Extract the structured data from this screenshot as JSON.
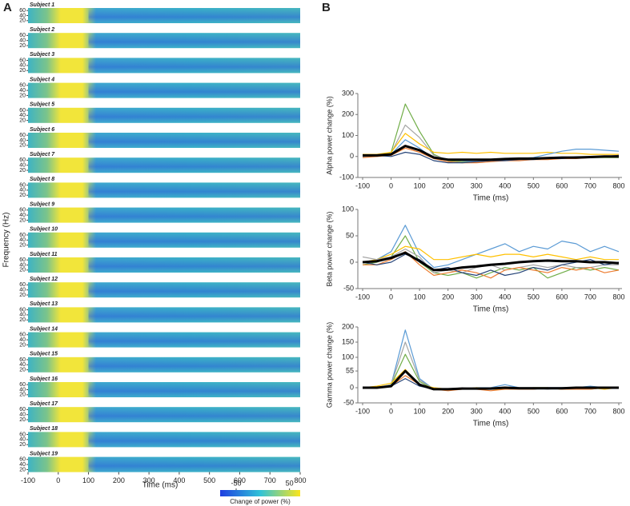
{
  "chart_data": [
    {
      "type": "heatmap",
      "panel_label": "A",
      "subjects": [
        "Subject 1",
        "Subject 2",
        "Subject 3",
        "Subject 4",
        "Subject 5",
        "Subject 6",
        "Subject 7",
        "Subject 8",
        "Subject 9",
        "Subject 10",
        "Subject 11",
        "Subject 12",
        "Subject 13",
        "Subject 14",
        "Subject 15",
        "Subject 16",
        "Subject 17",
        "Subject 18",
        "Subject 19"
      ],
      "xlabel": "Time (ms)",
      "ylabel": "Frequency (Hz)",
      "xlim": [
        -100,
        800
      ],
      "xticks": [
        -100,
        0,
        100,
        200,
        300,
        400,
        500,
        600,
        700,
        800
      ],
      "ylim": [
        10,
        70
      ],
      "yticks": [
        60,
        40,
        20
      ],
      "colorbar": {
        "label": "Change of power (%)",
        "lim": [
          -80,
          70
        ],
        "ticks": [
          -50,
          50
        ]
      }
    },
    {
      "type": "line",
      "panel_label": "B",
      "xlabel": "Time (ms)",
      "ylabel": "Alpha power change (%)",
      "x": [
        -100,
        -50,
        0,
        50,
        100,
        150,
        200,
        250,
        300,
        350,
        400,
        450,
        500,
        550,
        600,
        650,
        700,
        750,
        800
      ],
      "xlim": [
        -100,
        800
      ],
      "xticks": [
        -100,
        0,
        100,
        200,
        300,
        400,
        500,
        600,
        700,
        800
      ],
      "ylim": [
        -100,
        300
      ],
      "yticks": [
        300,
        200,
        100,
        0,
        -100
      ],
      "series": [
        {
          "color": "#70ad47",
          "values": [
            0,
            5,
            20,
            250,
            120,
            10,
            -20,
            -25,
            -20,
            -15,
            -15,
            -10,
            -10,
            -10,
            -5,
            -5,
            -5,
            -5,
            -5
          ]
        },
        {
          "color": "#a5a5a5",
          "values": [
            5,
            5,
            15,
            150,
            90,
            5,
            -15,
            -20,
            -20,
            -20,
            -15,
            -15,
            -10,
            -10,
            -5,
            0,
            0,
            0,
            0
          ]
        },
        {
          "color": "#ffc000",
          "values": [
            10,
            10,
            20,
            110,
            60,
            20,
            15,
            20,
            15,
            20,
            15,
            15,
            15,
            20,
            15,
            15,
            10,
            10,
            10
          ]
        },
        {
          "color": "#5b9bd5",
          "values": [
            0,
            0,
            10,
            80,
            40,
            -10,
            -15,
            -20,
            -25,
            -20,
            -15,
            -10,
            -5,
            10,
            25,
            35,
            35,
            30,
            25
          ]
        },
        {
          "color": "#ed7d31",
          "values": [
            -5,
            0,
            5,
            40,
            20,
            -10,
            -25,
            -30,
            -30,
            -25,
            -20,
            -20,
            -15,
            -15,
            -10,
            -10,
            -5,
            0,
            0
          ]
        },
        {
          "color": "#264478",
          "values": [
            5,
            5,
            0,
            20,
            10,
            -20,
            -30,
            -30,
            -25,
            -20,
            -20,
            -15,
            -15,
            -10,
            -10,
            -5,
            -5,
            0,
            5
          ]
        },
        {
          "color": "#000000",
          "values": [
            5,
            5,
            10,
            50,
            30,
            -5,
            -15,
            -15,
            -15,
            -15,
            -12,
            -10,
            -10,
            -8,
            -5,
            -5,
            -3,
            0,
            0
          ]
        }
      ]
    },
    {
      "type": "line",
      "xlabel": "Time (ms)",
      "ylabel": "Beta power change (%)",
      "x": [
        -100,
        -50,
        0,
        50,
        100,
        150,
        200,
        250,
        300,
        350,
        400,
        450,
        500,
        550,
        600,
        650,
        700,
        750,
        800
      ],
      "xlim": [
        -100,
        800
      ],
      "xticks": [
        -100,
        0,
        100,
        200,
        300,
        400,
        500,
        600,
        700,
        800
      ],
      "ylim": [
        -50,
        100
      ],
      "yticks": [
        100,
        50,
        0,
        -50
      ],
      "series": [
        {
          "color": "#5b9bd5",
          "values": [
            0,
            5,
            20,
            70,
            15,
            -10,
            -5,
            5,
            15,
            25,
            35,
            20,
            30,
            25,
            40,
            35,
            20,
            30,
            20
          ]
        },
        {
          "color": "#70ad47",
          "values": [
            -5,
            0,
            10,
            50,
            0,
            -20,
            -25,
            -20,
            -30,
            -20,
            -10,
            -15,
            -10,
            -30,
            -20,
            -10,
            -15,
            -10,
            -15
          ]
        },
        {
          "color": "#ffc000",
          "values": [
            0,
            5,
            15,
            30,
            25,
            5,
            5,
            10,
            15,
            10,
            15,
            15,
            10,
            15,
            10,
            5,
            10,
            5,
            5
          ]
        },
        {
          "color": "#a5a5a5",
          "values": [
            10,
            5,
            10,
            25,
            10,
            -20,
            -15,
            -20,
            -10,
            -5,
            -15,
            -10,
            -5,
            -10,
            -5,
            -10,
            -10,
            -5,
            -5
          ]
        },
        {
          "color": "#ed7d31",
          "values": [
            -5,
            -5,
            5,
            20,
            -5,
            -25,
            -20,
            -15,
            -20,
            -30,
            -15,
            -10,
            -15,
            -20,
            -10,
            -15,
            -10,
            -20,
            -15
          ]
        },
        {
          "color": "#264478",
          "values": [
            0,
            -5,
            0,
            15,
            5,
            -15,
            -10,
            -20,
            -25,
            -15,
            -25,
            -20,
            -10,
            -15,
            -5,
            0,
            5,
            -5,
            0
          ]
        },
        {
          "color": "#000000",
          "values": [
            0,
            2,
            8,
            18,
            2,
            -15,
            -14,
            -10,
            -8,
            -5,
            -3,
            0,
            2,
            3,
            2,
            2,
            0,
            0,
            -2
          ]
        }
      ]
    },
    {
      "type": "line",
      "xlabel": "Time (ms)",
      "ylabel": "Gamma power change (%)",
      "x": [
        -100,
        -50,
        0,
        50,
        100,
        150,
        200,
        250,
        300,
        350,
        400,
        450,
        500,
        550,
        600,
        650,
        700,
        750,
        800
      ],
      "xlim": [
        -100,
        800
      ],
      "xticks": [
        -100,
        0,
        100,
        200,
        300,
        400,
        500,
        600,
        700,
        800
      ],
      "ylim": [
        -50,
        200
      ],
      "yticks": [
        200,
        150,
        100,
        55,
        0,
        -50
      ],
      "series": [
        {
          "color": "#5b9bd5",
          "values": [
            0,
            0,
            10,
            190,
            30,
            -5,
            -5,
            -5,
            0,
            0,
            10,
            0,
            -5,
            0,
            0,
            0,
            5,
            0,
            0
          ]
        },
        {
          "color": "#a5a5a5",
          "values": [
            0,
            0,
            10,
            150,
            25,
            -5,
            -5,
            0,
            -5,
            0,
            0,
            0,
            0,
            -5,
            0,
            0,
            0,
            0,
            0
          ]
        },
        {
          "color": "#70ad47",
          "values": [
            0,
            0,
            8,
            110,
            20,
            -5,
            -5,
            -5,
            -5,
            -5,
            0,
            -5,
            0,
            0,
            -5,
            0,
            -5,
            0,
            0
          ]
        },
        {
          "color": "#ffc000",
          "values": [
            0,
            5,
            15,
            60,
            10,
            0,
            -5,
            -5,
            0,
            -5,
            -5,
            -5,
            0,
            0,
            -5,
            0,
            0,
            -5,
            0
          ]
        },
        {
          "color": "#ed7d31",
          "values": [
            0,
            0,
            5,
            40,
            10,
            -5,
            -10,
            -5,
            -5,
            -10,
            -5,
            -5,
            -5,
            0,
            -5,
            -5,
            -5,
            0,
            0
          ]
        },
        {
          "color": "#264478",
          "values": [
            0,
            0,
            5,
            30,
            5,
            -5,
            -5,
            -5,
            -5,
            -5,
            0,
            0,
            0,
            0,
            0,
            0,
            0,
            0,
            0
          ]
        },
        {
          "color": "#000000",
          "values": [
            0,
            0,
            5,
            55,
            10,
            -5,
            -5,
            -3,
            -3,
            -3,
            0,
            -2,
            -2,
            -2,
            -2,
            0,
            0,
            0,
            0
          ]
        }
      ]
    }
  ]
}
